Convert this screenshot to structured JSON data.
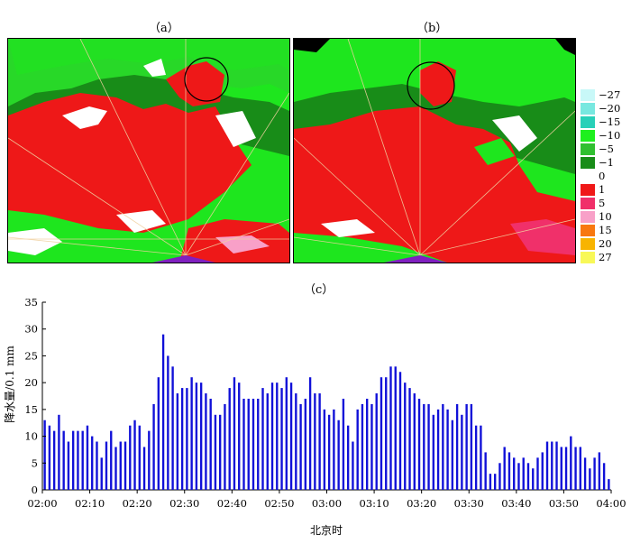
{
  "panels": {
    "a": {
      "label": "（a）"
    },
    "b": {
      "label": "（b）"
    },
    "c": {
      "label": "（c）"
    }
  },
  "legend": {
    "items": [
      {
        "label": "−27",
        "color": "#c8f8f8"
      },
      {
        "label": "−20",
        "color": "#78e8e0"
      },
      {
        "label": "−15",
        "color": "#28d0b8"
      },
      {
        "label": "−10",
        "color": "#1ef01e"
      },
      {
        "label": "−5",
        "color": "#30c030"
      },
      {
        "label": "−1",
        "color": "#188c18"
      },
      {
        "label": "0",
        "color": "#ffffff"
      },
      {
        "label": "1",
        "color": "#f01818"
      },
      {
        "label": "5",
        "color": "#f0306a"
      },
      {
        "label": "10",
        "color": "#f8a0c8"
      },
      {
        "label": "15",
        "color": "#f87810"
      },
      {
        "label": "20",
        "color": "#f8b400"
      },
      {
        "label": "27",
        "color": "#f8f858"
      }
    ]
  },
  "chart_data": {
    "type": "bar",
    "title": "",
    "xlabel": "北京时",
    "ylabel": "降水量/0.1 mm",
    "ylim": [
      0,
      35
    ],
    "yticks": [
      0,
      5,
      10,
      15,
      20,
      25,
      30,
      35
    ],
    "xlim": [
      0,
      120
    ],
    "xticks": [
      {
        "at": 0,
        "label": "02:00"
      },
      {
        "at": 10,
        "label": "02:10"
      },
      {
        "at": 20,
        "label": "02:20"
      },
      {
        "at": 30,
        "label": "02:30"
      },
      {
        "at": 40,
        "label": "02:40"
      },
      {
        "at": 50,
        "label": "02:50"
      },
      {
        "at": 60,
        "label": "03:00"
      },
      {
        "at": 70,
        "label": "03:10"
      },
      {
        "at": 80,
        "label": "03:20"
      },
      {
        "at": 90,
        "label": "03:30"
      },
      {
        "at": 100,
        "label": "03:40"
      },
      {
        "at": 110,
        "label": "03:50"
      },
      {
        "at": 120,
        "label": "04:00"
      }
    ],
    "bar_color": "#1010d8",
    "values": [
      13,
      12,
      11,
      14,
      11,
      9,
      11,
      11,
      11,
      12,
      10,
      9,
      6,
      9,
      11,
      8,
      9,
      9,
      12,
      13,
      12,
      8,
      11,
      16,
      21,
      29,
      25,
      23,
      18,
      19,
      19,
      21,
      20,
      20,
      18,
      17,
      14,
      14,
      16,
      19,
      21,
      20,
      17,
      17,
      17,
      17,
      19,
      18,
      20,
      20,
      19,
      21,
      20,
      18,
      16,
      17,
      21,
      18,
      18,
      15,
      14,
      15,
      13,
      17,
      12,
      9,
      15,
      16,
      17,
      16,
      18,
      21,
      21,
      23,
      23,
      22,
      20,
      19,
      18,
      17,
      16,
      16,
      14,
      15,
      16,
      15,
      13,
      16,
      14,
      16,
      16,
      12,
      12,
      7,
      3,
      3,
      5,
      8,
      7,
      6,
      5,
      6,
      5,
      4,
      6,
      7,
      9,
      9,
      9,
      8,
      8,
      10,
      8,
      8,
      6,
      4,
      6,
      7,
      5,
      2
    ]
  }
}
